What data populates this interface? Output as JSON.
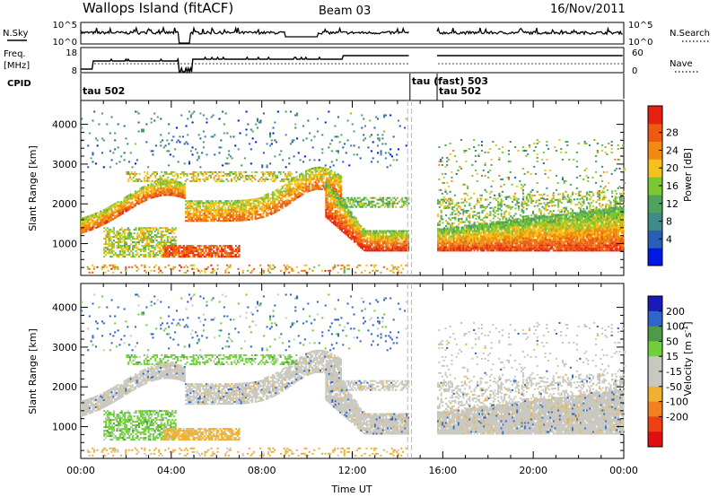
{
  "header": {
    "station": "Wallops Island (fitACF)",
    "beam": "Beam 03",
    "date": "16/Nov/2011"
  },
  "top_panels": {
    "nsky": {
      "label": "N.Sky",
      "tick_top": "10^5",
      "tick_bottom": "10^0",
      "right_label": "N.Search",
      "right_tick_top": "10^5",
      "right_tick_bottom": "10^0"
    },
    "freq": {
      "label_line1": "Freq.",
      "label_line2": "[MHz]",
      "tick_top": "18",
      "tick_bottom": "8",
      "right_label": "Nave",
      "right_tick_top": "60",
      "right_tick_bottom": "0"
    },
    "cpid": {
      "label": "CPID",
      "segments": [
        {
          "start": 0.0,
          "end": 14.55,
          "label": "tau 502"
        },
        {
          "start": 14.55,
          "end": 15.75,
          "label": "tau (fast) 503"
        },
        {
          "start": 15.75,
          "end": 24.0,
          "label": "tau 502"
        }
      ]
    }
  },
  "chart_data": [
    {
      "type": "heatmap",
      "name": "Power",
      "ylabel": "Slant Range [km]",
      "ylim": [
        200,
        4600
      ],
      "xlim": [
        0,
        24
      ],
      "yticks": [
        1000,
        2000,
        3000,
        4000
      ],
      "colorbar": {
        "label": "Power [dB]",
        "ticks": [
          "4",
          "8",
          "12",
          "16",
          "20",
          "24",
          "28"
        ],
        "colors": [
          "#0018e6",
          "#2a5fb8",
          "#3f8a8a",
          "#4fa35a",
          "#7cc832",
          "#f4c21a",
          "#f28a12",
          "#ee5a10",
          "#e82010"
        ]
      }
    },
    {
      "type": "heatmap",
      "name": "Velocity",
      "xlabel": "Time UT",
      "ylabel": "Slant Range [km]",
      "ylim": [
        200,
        4600
      ],
      "xlim": [
        0,
        24
      ],
      "yticks": [
        1000,
        2000,
        3000,
        4000
      ],
      "xticks": [
        "00:00",
        "04:00",
        "08:00",
        "12:00",
        "16:00",
        "20:00",
        "00:00"
      ],
      "colorbar": {
        "label": "Velocity [m s^-1]",
        "ticks": [
          "200",
          "100",
          "50",
          "15",
          "-15",
          "-50",
          "-100",
          "-200"
        ],
        "colors": [
          "#1a1ab8",
          "#2f64c8",
          "#4f9a4a",
          "#6fd03a",
          "#c8c8c0",
          "#c8c8c0",
          "#f0b030",
          "#f08020",
          "#f04010",
          "#e01010"
        ]
      }
    }
  ]
}
